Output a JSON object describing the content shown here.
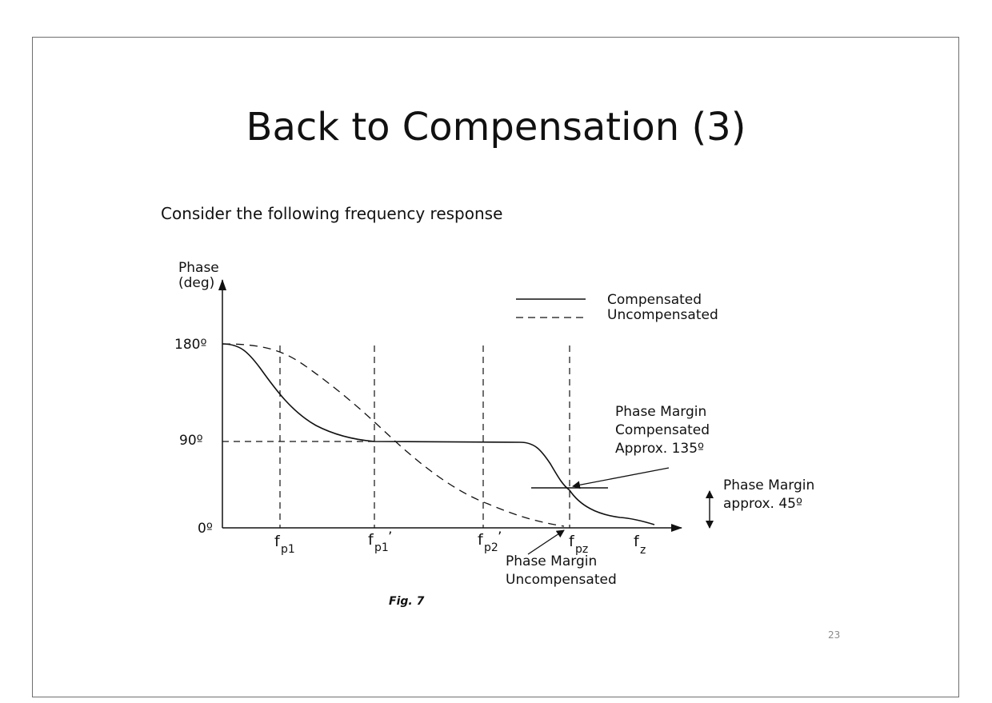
{
  "slide": {
    "title": "Back to Compensation (3)",
    "subtitle": "Consider the following frequency response",
    "page_number": "23"
  },
  "figure": {
    "y_label_line1": "Phase",
    "y_label_line2": "(deg)",
    "tick_180": "180º",
    "tick_90": "90º",
    "tick_0": "0º",
    "freq_labels": {
      "fp1_main": "f",
      "fp1_sub": "p1",
      "fp1p_main": "f",
      "fp1p_sub": "p1",
      "fp1p_prime": "’",
      "fp2p_main": "f",
      "fp2p_sub": "p2",
      "fp2p_prime": "’",
      "fpz_main": "f",
      "fpz_sub": "pz",
      "fz_main": "f",
      "fz_sub": "z"
    },
    "legend": {
      "compensated": "Compensated",
      "uncompensated": "Uncompensated"
    },
    "annotation_compensated": {
      "line1": "Phase Margin",
      "line2": "Compensated",
      "line3": "Approx. 135º"
    },
    "annotation_uncompensated": {
      "line1": "Phase Margin",
      "line2": "Uncompensated"
    },
    "annotation_margin": {
      "line1": "Phase Margin",
      "line2": "approx. 45º"
    },
    "caption": "Fig. 7"
  }
}
